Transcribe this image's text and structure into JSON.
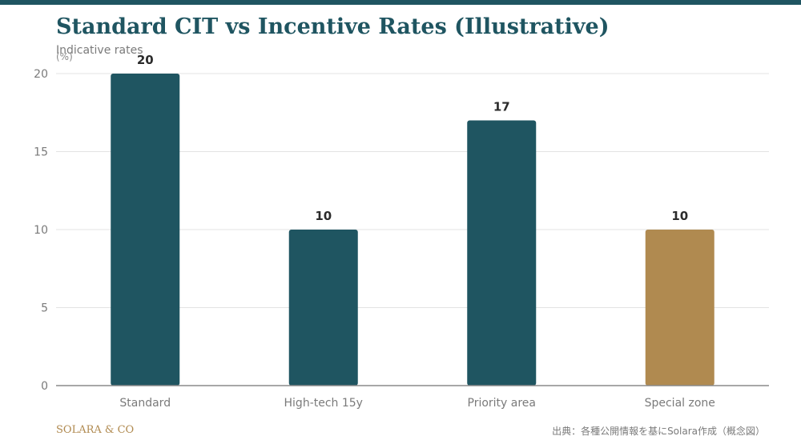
{
  "header": {
    "title": "Standard CIT vs Incentive Rates (Illustrative)",
    "subtitle": "Indicative rates",
    "unit": "(%)"
  },
  "footer": {
    "brand": "SOLARA & CO",
    "source": "出典：各種公開情報を基にSolara作成（概念図）"
  },
  "colors": {
    "accent": "#1f5561",
    "highlight": "#b08a50"
  },
  "chart_data": {
    "type": "bar",
    "title": "Standard CIT vs Incentive Rates (Illustrative)",
    "subtitle": "Indicative rates",
    "ylabel": "(%)",
    "xlabel": "",
    "categories": [
      "Standard",
      "High-tech 15y",
      "Priority area",
      "Special zone"
    ],
    "values": [
      20,
      10,
      17,
      10
    ],
    "bar_colors": [
      "#1f5561",
      "#1f5561",
      "#1f5561",
      "#b08a50"
    ],
    "ylim": [
      0,
      20
    ],
    "yticks": [
      0,
      5,
      10,
      15,
      20
    ],
    "grid": true,
    "data_labels": true,
    "legend": "none"
  }
}
